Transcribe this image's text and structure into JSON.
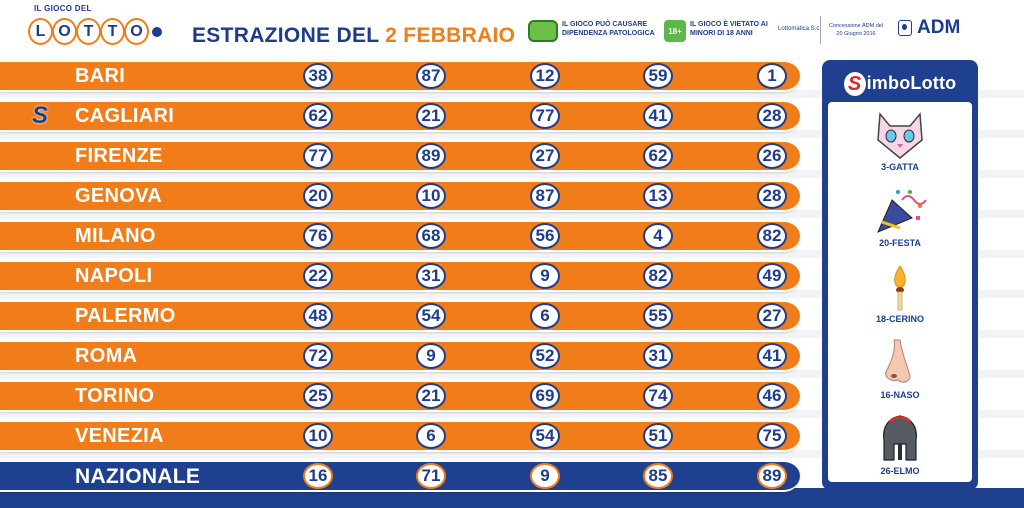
{
  "header": {
    "logo_top": "IL GIOCO DEL",
    "logo_letters": [
      "L",
      "O",
      "T",
      "T",
      "O"
    ],
    "title_prefix": "ESTRAZIONE DEL",
    "title_date": "2 FEBBRAIO",
    "warning_text": "IL GIOCO PUÒ CAUSARE DIPENDENZA PATOLOGICA",
    "age_badge": "18+",
    "age_text": "IL GIOCO È VIETATO AI MINORI DI 18 ANNI",
    "company": "Lottomatica S.c.",
    "concession": "Concessione ADM del 20 Giugno 2016",
    "adm": "ADM"
  },
  "draws": [
    {
      "city": "BARI",
      "numbers": [
        "38",
        "87",
        "12",
        "59",
        "1"
      ],
      "simbolotto": false
    },
    {
      "city": "CAGLIARI",
      "numbers": [
        "62",
        "21",
        "77",
        "41",
        "28"
      ],
      "simbolotto": true
    },
    {
      "city": "FIRENZE",
      "numbers": [
        "77",
        "89",
        "27",
        "62",
        "26"
      ],
      "simbolotto": false
    },
    {
      "city": "GENOVA",
      "numbers": [
        "20",
        "10",
        "87",
        "13",
        "28"
      ],
      "simbolotto": false
    },
    {
      "city": "MILANO",
      "numbers": [
        "76",
        "68",
        "56",
        "4",
        "82"
      ],
      "simbolotto": false
    },
    {
      "city": "NAPOLI",
      "numbers": [
        "22",
        "31",
        "9",
        "82",
        "49"
      ],
      "simbolotto": false
    },
    {
      "city": "PALERMO",
      "numbers": [
        "48",
        "54",
        "6",
        "55",
        "27"
      ],
      "simbolotto": false
    },
    {
      "city": "ROMA",
      "numbers": [
        "72",
        "9",
        "52",
        "31",
        "41"
      ],
      "simbolotto": false
    },
    {
      "city": "TORINO",
      "numbers": [
        "25",
        "21",
        "69",
        "74",
        "46"
      ],
      "simbolotto": false
    },
    {
      "city": "VENEZIA",
      "numbers": [
        "10",
        "6",
        "54",
        "51",
        "75"
      ],
      "simbolotto": false
    },
    {
      "city": "NAZIONALE",
      "numbers": [
        "16",
        "71",
        "9",
        "85",
        "89"
      ],
      "simbolotto": false
    }
  ],
  "simbolotto": {
    "title_s": "S",
    "title_rest": "imboLotto",
    "symbols": [
      {
        "label": "3-GATTA",
        "icon": "cat-icon"
      },
      {
        "label": "20-FESTA",
        "icon": "party-icon"
      },
      {
        "label": "18-CERINO",
        "icon": "match-icon"
      },
      {
        "label": "16-NASO",
        "icon": "nose-icon"
      },
      {
        "label": "26-ELMO",
        "icon": "helmet-icon"
      }
    ]
  },
  "colors": {
    "orange": "#f07d1a",
    "navy": "#1f3f8f",
    "text_navy": "#1d3c8c"
  }
}
